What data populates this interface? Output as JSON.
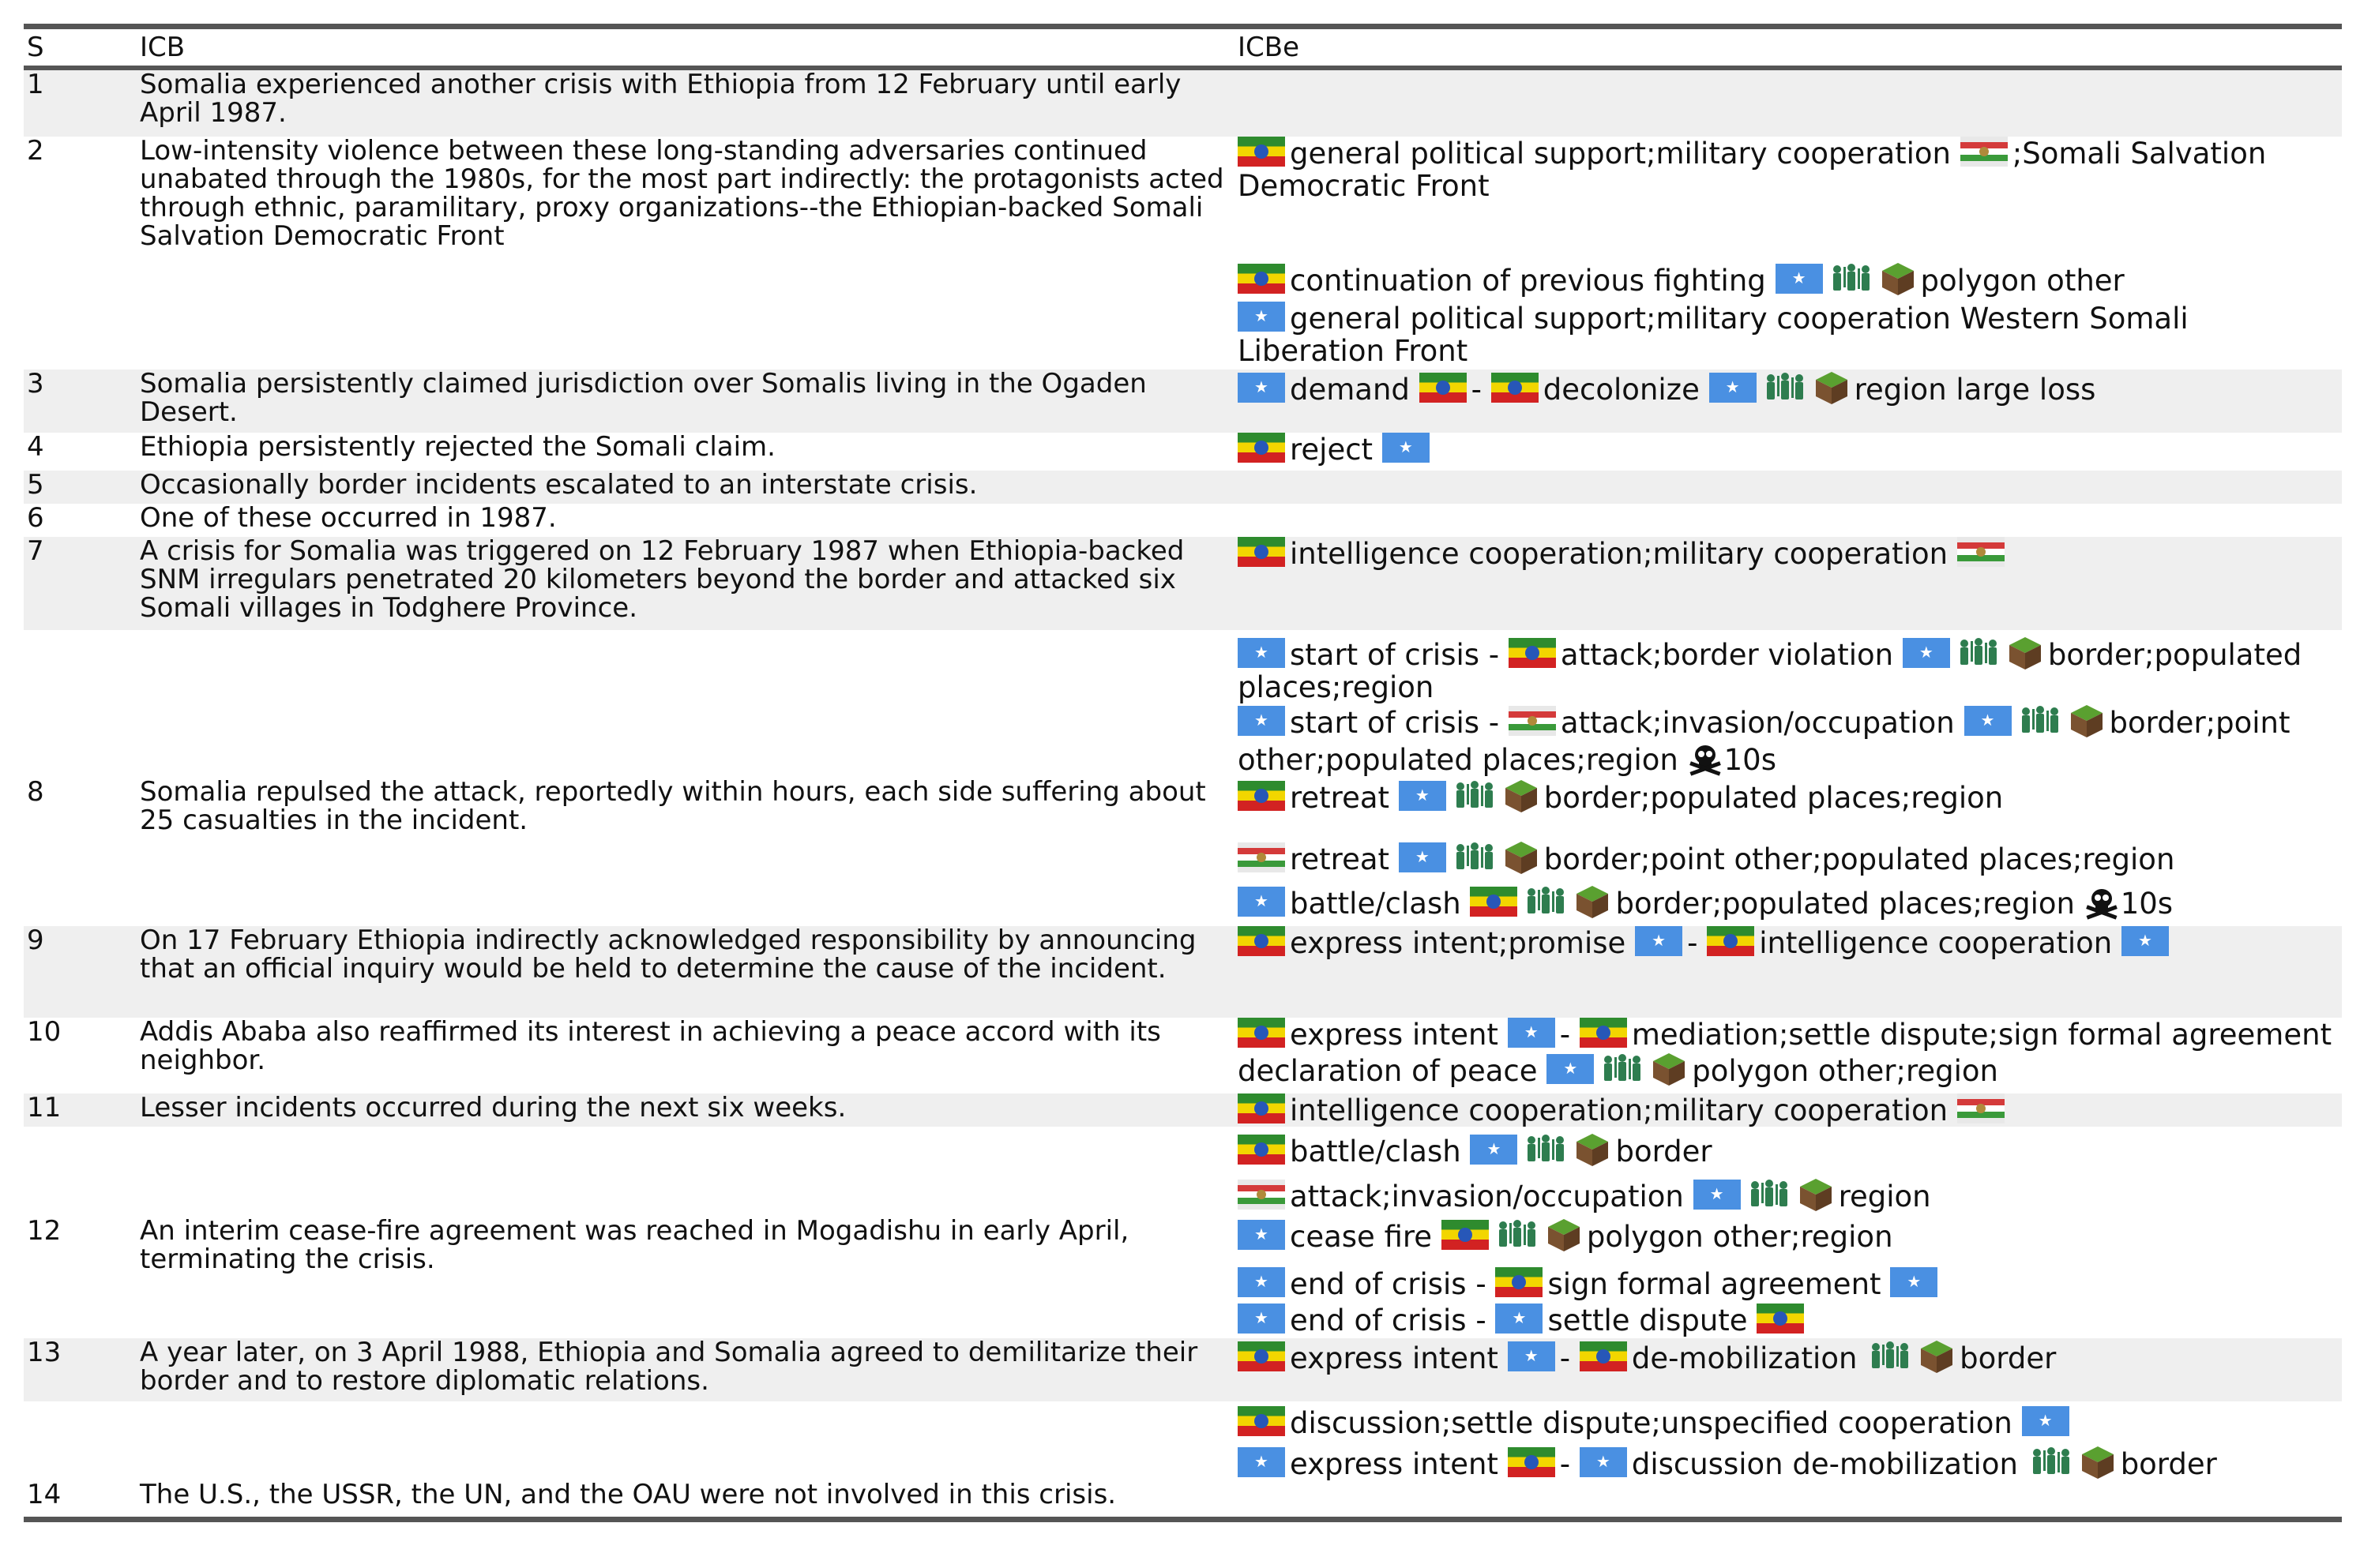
{
  "headers": {
    "s": "S",
    "icb": "ICB",
    "icbe": "ICBe"
  },
  "rows": [
    {
      "s": "1",
      "icb": "Somalia experienced another crisis with Ethiopia from 12 February until early April 1987."
    },
    {
      "s": "2",
      "icb": "Low-intensity violence between these long-standing adversaries continued unabated through the 1980s, for the most part indirectly: the protagonists acted through ethnic, paramilitary, proxy organizations--the Ethiopian-backed Somali Salvation Democratic Front",
      "e": [
        "general political support;military cooperation",
        ";Somali Salvation Democratic Front"
      ]
    },
    {
      "e": [
        "continuation of previous fighting",
        "polygon other"
      ]
    },
    {
      "e": [
        "general political support;military cooperation Western Somali Liberation Front"
      ]
    },
    {
      "s": "3",
      "icb": "Somalia persistently claimed jurisdiction over Somalis living in the Ogaden Desert.",
      "e": [
        "demand",
        "-",
        "decolonize",
        "region large loss"
      ]
    },
    {
      "s": "4",
      "icb": "Ethiopia persistently rejected the Somali claim.",
      "e": [
        "reject"
      ]
    },
    {
      "s": "5",
      "icb": "Occasionally border incidents escalated to an interstate crisis."
    },
    {
      "s": "6",
      "icb": "One of these occurred in 1987."
    },
    {
      "s": "7",
      "icb": "A crisis for Somalia was triggered on 12 February 1987 when Ethiopia-backed SNM irregulars penetrated 20 kilometers beyond the border and attacked six Somali villages in Todghere Province.",
      "e": [
        "intelligence cooperation;military cooperation"
      ]
    },
    {
      "e": [
        "start of crisis -",
        "attack;border violation",
        "border;populated places;region"
      ]
    },
    {
      "e": [
        "start of crisis -",
        "attack;invasion/occupation",
        "border;point other;populated places;region",
        "10s"
      ]
    },
    {
      "s": "8",
      "icb": "Somalia repulsed the attack, reportedly within hours, each side suffering about 25 casualties in the incident.",
      "e": [
        "retreat",
        "border;populated places;region"
      ]
    },
    {
      "e": [
        "retreat",
        "border;point other;populated places;region"
      ]
    },
    {
      "e": [
        "battle/clash",
        "border;populated places;region",
        "10s"
      ]
    },
    {
      "s": "9",
      "icb": "On 17 February Ethiopia indirectly acknowledged responsibility by announcing that an official inquiry would be held to determine the cause of the incident.",
      "e": [
        "express intent;promise",
        "-",
        "intelligence cooperation"
      ]
    },
    {
      "s": "10",
      "icb": "Addis Ababa also reaffirmed its interest in achieving a peace accord with its neighbor.",
      "e": [
        "express intent",
        "-",
        "mediation;settle dispute;sign formal agreement declaration of peace",
        "polygon other;region"
      ]
    },
    {
      "s": "11",
      "icb": "Lesser incidents occurred during the next six weeks.",
      "e": [
        "intelligence cooperation;military cooperation"
      ]
    },
    {
      "e": [
        "battle/clash",
        "border"
      ]
    },
    {
      "e": [
        "attack;invasion/occupation",
        "region"
      ]
    },
    {
      "s": "12",
      "icb": "An interim cease-fire agreement was reached in Mogadishu in early April, terminating the crisis.",
      "e": [
        "cease fire",
        "polygon other;region"
      ]
    },
    {
      "e": [
        "end of crisis -",
        "sign formal agreement"
      ]
    },
    {
      "e": [
        "end of crisis -",
        "settle dispute"
      ]
    },
    {
      "s": "13",
      "icb": "A year later, on 3 April 1988, Ethiopia and Somalia agreed to demilitarize their border and to restore diplomatic relations.",
      "e": [
        "express intent",
        "-",
        "de-mobilization",
        "border"
      ]
    },
    {
      "e": [
        "discussion;settle dispute;unspecified cooperation"
      ]
    },
    {
      "e": [
        "express intent",
        "-",
        "discussion de-mobilization",
        "border"
      ]
    },
    {
      "s": "14",
      "icb": "The U.S., the USSR, the UN, and the OAU were not involved in this crisis."
    }
  ],
  "icons": {
    "ethiopia": "ethiopia-flag-icon",
    "somalia": "somalia-flag-icon",
    "snm": "snm-flag-icon",
    "soldiers": "soldiers-icon",
    "land": "land-block-icon",
    "skull": "skull-icon"
  },
  "colors": {
    "rule": "#555555",
    "shade": "#efefef",
    "somalia_blue": "#4a90e2",
    "soldier_green": "#2e7d4f"
  }
}
